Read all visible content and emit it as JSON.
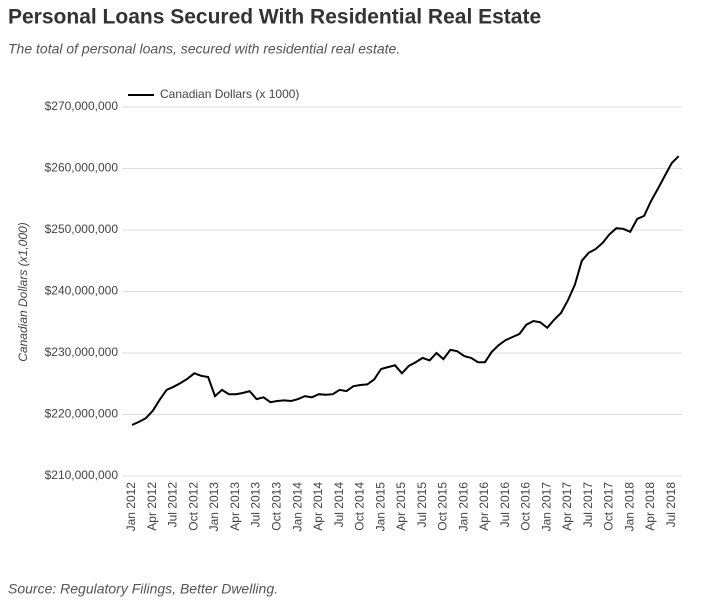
{
  "chart_data": {
    "type": "line",
    "title": "Personal Loans Secured With Residential Real Estate",
    "subtitle": "The total of personal loans, secured with residential real estate.",
    "y_label": "Canadian Dollars (x1,000)",
    "source": "Source: Regulatory Filings, Better Dwelling.",
    "legend": "top-left",
    "grid": true,
    "categories": [
      "Jan 2012",
      null,
      null,
      "Apr 2012",
      null,
      null,
      "Jul 2012",
      null,
      null,
      "Oct 2012",
      null,
      null,
      "Jan 2013",
      null,
      null,
      "Apr 2013",
      null,
      null,
      "Jul 2013",
      null,
      null,
      "Oct 2013",
      null,
      null,
      "Jan 2014",
      null,
      null,
      "Apr 2014",
      null,
      null,
      "Jul 2014",
      null,
      null,
      "Oct 2014",
      null,
      null,
      "Jan 2015",
      null,
      null,
      "Apr 2015",
      null,
      null,
      "Jul 2015",
      null,
      null,
      "Oct 2015",
      null,
      null,
      "Jan 2016",
      null,
      null,
      "Apr 2016",
      null,
      null,
      "Jul 2016",
      null,
      null,
      "Oct 2016",
      null,
      null,
      "Jan 2017",
      null,
      null,
      "Apr 2017",
      null,
      null,
      "Jul 2017",
      null,
      null,
      "Oct 2017",
      null,
      null,
      "Jan 2018",
      null,
      null,
      "Apr 2018",
      null,
      null,
      "Jul 2018",
      null
    ],
    "series": [
      {
        "name": "Canadian Dollars (x 1000)",
        "color": "#000000",
        "values": [
          218300000,
          218800000,
          219400000,
          220600000,
          222400000,
          224000000,
          224500000,
          225100000,
          225800000,
          226700000,
          226300000,
          226100000,
          223000000,
          224000000,
          223300000,
          223300000,
          223500000,
          223800000,
          222500000,
          222800000,
          222000000,
          222200000,
          222300000,
          222200000,
          222500000,
          223000000,
          222800000,
          223300000,
          223200000,
          223300000,
          224000000,
          223800000,
          224600000,
          224800000,
          224900000,
          225700000,
          227400000,
          227700000,
          228000000,
          226700000,
          227900000,
          228500000,
          229200000,
          228800000,
          230000000,
          229000000,
          230500000,
          230300000,
          229500000,
          229200000,
          228500000,
          228500000,
          230200000,
          231300000,
          232100000,
          232600000,
          233100000,
          234600000,
          235200000,
          235000000,
          234100000,
          235400000,
          236500000,
          238600000,
          241100000,
          245000000,
          246300000,
          246900000,
          247900000,
          249300000,
          250300000,
          250200000,
          249700000,
          251800000,
          252300000,
          254700000,
          256700000,
          258800000,
          260900000,
          262000000
        ]
      }
    ],
    "ylim": [
      210000000,
      270000000
    ],
    "yticks": [
      {
        "value": 210000000,
        "label": "$210,000,000"
      },
      {
        "value": 220000000,
        "label": "$220,000,000"
      },
      {
        "value": 230000000,
        "label": "$230,000,000"
      },
      {
        "value": 240000000,
        "label": "$240,000,000"
      },
      {
        "value": 250000000,
        "label": "$250,000,000"
      },
      {
        "value": 260000000,
        "label": "$260,000,000"
      },
      {
        "value": 270000000,
        "label": "$270,000,000"
      }
    ]
  }
}
